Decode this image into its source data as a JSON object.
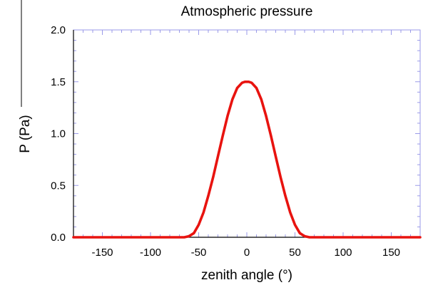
{
  "chart_data": {
    "type": "line",
    "title": "Atmospheric pressure",
    "xlabel": "zenith angle (°)",
    "ylabel": "P (Pa)",
    "xlim": [
      -180,
      180
    ],
    "ylim": [
      0,
      2.0
    ],
    "x_ticks": [
      -150,
      -100,
      -50,
      0,
      50,
      100,
      150
    ],
    "x_tick_labels": [
      "-150",
      "-100",
      "-50",
      "0",
      "50",
      "100",
      "150"
    ],
    "y_ticks": [
      0,
      0.5,
      1.0,
      1.5,
      2.0
    ],
    "y_tick_labels": [
      "0.0",
      "0.5",
      "1.0",
      "1.5",
      "2.0"
    ],
    "grid": false,
    "series": [
      {
        "color": "#e8130f",
        "x": [
          -180,
          -150,
          -100,
          -65,
          -60,
          -55,
          -50,
          -45,
          -40,
          -35,
          -30,
          -25,
          -20,
          -15,
          -10,
          -5,
          -2,
          0,
          2,
          5,
          10,
          15,
          20,
          25,
          30,
          35,
          40,
          45,
          50,
          55,
          60,
          65,
          100,
          150,
          180
        ],
        "y": [
          0,
          0,
          0,
          0,
          0.01,
          0.04,
          0.12,
          0.24,
          0.4,
          0.58,
          0.78,
          0.98,
          1.17,
          1.33,
          1.44,
          1.49,
          1.5,
          1.5,
          1.5,
          1.49,
          1.44,
          1.33,
          1.17,
          0.98,
          0.78,
          0.58,
          0.4,
          0.24,
          0.12,
          0.04,
          0.01,
          0,
          0,
          0,
          0
        ]
      }
    ],
    "colors": {
      "axis": "#000000",
      "minor_ticks": "#9a9ae8",
      "line": "#e8130f"
    }
  }
}
